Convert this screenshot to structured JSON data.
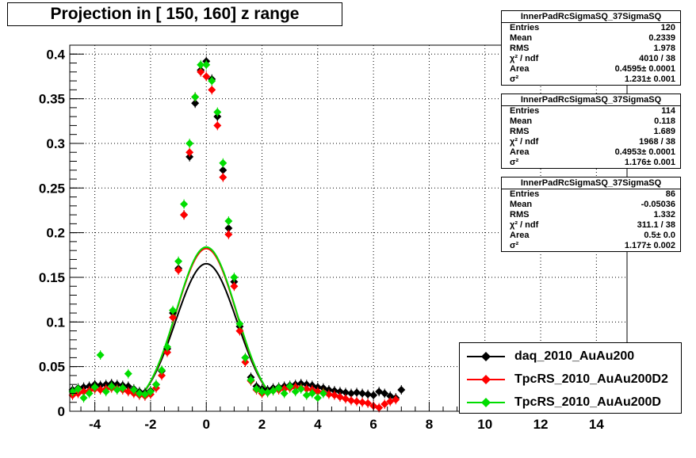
{
  "title": "Projection in [ 150, 160] z range",
  "stats": [
    {
      "name": "InnerPadRcSigmaSQ_37SigmaSQ",
      "rows": [
        {
          "label": "Entries",
          "value": "120"
        },
        {
          "label": "Mean",
          "value": "0.2339"
        },
        {
          "label": "RMS",
          "value": "1.978"
        },
        {
          "label": "χ² / ndf",
          "value": "4010 / 38"
        },
        {
          "label": "Area",
          "value": "0.4595± 0.0001"
        },
        {
          "label": "σ²",
          "value": "1.231± 0.001"
        }
      ]
    },
    {
      "name": "InnerPadRcSigmaSQ_37SigmaSQ",
      "rows": [
        {
          "label": "Entries",
          "value": "114"
        },
        {
          "label": "Mean",
          "value": "0.118"
        },
        {
          "label": "RMS",
          "value": "1.689"
        },
        {
          "label": "χ² / ndf",
          "value": "1968 / 38"
        },
        {
          "label": "Area",
          "value": "0.4953± 0.0001"
        },
        {
          "label": "σ²",
          "value": "1.176± 0.001"
        }
      ]
    },
    {
      "name": "InnerPadRcSigmaSQ_37SigmaSQ",
      "rows": [
        {
          "label": "Entries",
          "value": "86"
        },
        {
          "label": "Mean",
          "value": "-0.05036"
        },
        {
          "label": "RMS",
          "value": "1.332"
        },
        {
          "label": "χ² / ndf",
          "value": "311.1 / 38"
        },
        {
          "label": "Area",
          "value": "0.5± 0.0"
        },
        {
          "label": "σ²",
          "value": "1.177± 0.002"
        }
      ]
    }
  ],
  "legend": [
    {
      "label": "daq_2010_AuAu200",
      "color": "#000000"
    },
    {
      "label": "TpcRS_2010_AuAu200D2",
      "color": "#ff0000"
    },
    {
      "label": "TpcRS_2010_AuAu200D",
      "color": "#00dd00"
    }
  ],
  "chart_data": {
    "type": "scatter",
    "title": "Projection in [ 150, 160] z range",
    "xlim": [
      -4.9,
      15.1
    ],
    "ylim": [
      0,
      0.41
    ],
    "xticks": [
      -4,
      -2,
      0,
      2,
      4,
      6,
      8,
      10,
      12,
      14
    ],
    "xtick_labels": [
      "-4",
      "-2",
      "0",
      "2",
      "4",
      "6",
      "8",
      "10",
      "12",
      "14"
    ],
    "yticks": [
      0,
      0.05,
      0.1,
      0.15,
      0.2,
      0.25,
      0.3,
      0.35,
      0.4
    ],
    "ytick_labels": [
      "0",
      "0.05",
      "0.1",
      "0.15",
      "0.2",
      "0.25",
      "0.3",
      "0.35",
      "0.4"
    ],
    "grid": true,
    "legend_position": "bottom-right",
    "series": [
      {
        "name": "daq_2010_AuAu200",
        "color": "#000000",
        "points": [
          [
            -4.8,
            0.024
          ],
          [
            -4.6,
            0.026
          ],
          [
            -4.4,
            0.027
          ],
          [
            -4.2,
            0.028
          ],
          [
            -4.0,
            0.03
          ],
          [
            -3.8,
            0.029
          ],
          [
            -3.6,
            0.03
          ],
          [
            -3.4,
            0.031
          ],
          [
            -3.2,
            0.03
          ],
          [
            -3.0,
            0.029
          ],
          [
            -2.8,
            0.028
          ],
          [
            -2.6,
            0.025
          ],
          [
            -2.4,
            0.022
          ],
          [
            -2.2,
            0.021
          ],
          [
            -2.0,
            0.023
          ],
          [
            -1.8,
            0.03
          ],
          [
            -1.6,
            0.045
          ],
          [
            -1.4,
            0.07
          ],
          [
            -1.2,
            0.11
          ],
          [
            -1.0,
            0.16
          ],
          [
            -0.8,
            0.22
          ],
          [
            -0.6,
            0.285
          ],
          [
            -0.4,
            0.345
          ],
          [
            -0.2,
            0.382
          ],
          [
            0.0,
            0.392
          ],
          [
            0.2,
            0.372
          ],
          [
            0.4,
            0.33
          ],
          [
            0.6,
            0.27
          ],
          [
            0.8,
            0.205
          ],
          [
            1.0,
            0.145
          ],
          [
            1.2,
            0.095
          ],
          [
            1.4,
            0.06
          ],
          [
            1.6,
            0.038
          ],
          [
            1.8,
            0.028
          ],
          [
            2.0,
            0.025
          ],
          [
            2.2,
            0.024
          ],
          [
            2.4,
            0.026
          ],
          [
            2.6,
            0.027
          ],
          [
            2.8,
            0.028
          ],
          [
            3.0,
            0.029
          ],
          [
            3.2,
            0.03
          ],
          [
            3.4,
            0.031
          ],
          [
            3.6,
            0.03
          ],
          [
            3.8,
            0.029
          ],
          [
            4.0,
            0.027
          ],
          [
            4.2,
            0.026
          ],
          [
            4.4,
            0.024
          ],
          [
            4.6,
            0.023
          ],
          [
            4.8,
            0.022
          ],
          [
            5.0,
            0.021
          ],
          [
            5.2,
            0.02
          ],
          [
            5.4,
            0.021
          ],
          [
            5.6,
            0.02
          ],
          [
            5.8,
            0.019
          ],
          [
            6.0,
            0.018
          ],
          [
            6.2,
            0.022
          ],
          [
            6.4,
            0.02
          ],
          [
            6.6,
            0.017
          ],
          [
            6.8,
            0.015
          ],
          [
            7.0,
            0.024
          ]
        ]
      },
      {
        "name": "TpcRS_2010_AuAu200D2",
        "color": "#ff0000",
        "points": [
          [
            -4.8,
            0.018
          ],
          [
            -4.6,
            0.02
          ],
          [
            -4.4,
            0.022
          ],
          [
            -4.2,
            0.023
          ],
          [
            -4.0,
            0.025
          ],
          [
            -3.8,
            0.024
          ],
          [
            -3.6,
            0.025
          ],
          [
            -3.4,
            0.026
          ],
          [
            -3.2,
            0.025
          ],
          [
            -3.0,
            0.024
          ],
          [
            -2.8,
            0.022
          ],
          [
            -2.6,
            0.02
          ],
          [
            -2.4,
            0.018
          ],
          [
            -2.2,
            0.017
          ],
          [
            -2.0,
            0.019
          ],
          [
            -1.8,
            0.026
          ],
          [
            -1.6,
            0.04
          ],
          [
            -1.4,
            0.066
          ],
          [
            -1.2,
            0.105
          ],
          [
            -1.0,
            0.158
          ],
          [
            -0.8,
            0.22
          ],
          [
            -0.6,
            0.29
          ],
          [
            -0.4,
            0.352
          ],
          [
            -0.2,
            0.38
          ],
          [
            0.0,
            0.375
          ],
          [
            0.2,
            0.36
          ],
          [
            0.4,
            0.32
          ],
          [
            0.6,
            0.262
          ],
          [
            0.8,
            0.198
          ],
          [
            1.0,
            0.14
          ],
          [
            1.2,
            0.09
          ],
          [
            1.4,
            0.055
          ],
          [
            1.6,
            0.034
          ],
          [
            1.8,
            0.024
          ],
          [
            2.0,
            0.02
          ],
          [
            2.2,
            0.021
          ],
          [
            2.4,
            0.023
          ],
          [
            2.6,
            0.024
          ],
          [
            2.8,
            0.025
          ],
          [
            3.0,
            0.026
          ],
          [
            3.2,
            0.027
          ],
          [
            3.4,
            0.026
          ],
          [
            3.6,
            0.025
          ],
          [
            3.8,
            0.024
          ],
          [
            4.0,
            0.022
          ],
          [
            4.2,
            0.021
          ],
          [
            4.4,
            0.019
          ],
          [
            4.6,
            0.018
          ],
          [
            4.8,
            0.016
          ],
          [
            5.0,
            0.014
          ],
          [
            5.2,
            0.012
          ],
          [
            5.4,
            0.011
          ],
          [
            5.6,
            0.01
          ],
          [
            5.8,
            0.009
          ],
          [
            6.0,
            0.006
          ],
          [
            6.2,
            0.004
          ],
          [
            6.4,
            0.008
          ],
          [
            6.6,
            0.011
          ],
          [
            6.8,
            0.013
          ]
        ]
      },
      {
        "name": "TpcRS_2010_AuAu200D",
        "color": "#00dd00",
        "points": [
          [
            -4.8,
            0.022
          ],
          [
            -4.6,
            0.025
          ],
          [
            -4.4,
            0.015
          ],
          [
            -4.2,
            0.02
          ],
          [
            -4.0,
            0.027
          ],
          [
            -3.8,
            0.063
          ],
          [
            -3.6,
            0.022
          ],
          [
            -3.4,
            0.028
          ],
          [
            -3.2,
            0.024
          ],
          [
            -3.0,
            0.026
          ],
          [
            -2.8,
            0.042
          ],
          [
            -2.6,
            0.024
          ],
          [
            -2.4,
            0.02
          ],
          [
            -2.2,
            0.019
          ],
          [
            -2.0,
            0.022
          ],
          [
            -1.8,
            0.03
          ],
          [
            -1.6,
            0.046
          ],
          [
            -1.4,
            0.072
          ],
          [
            -1.2,
            0.113
          ],
          [
            -1.0,
            0.168
          ],
          [
            -0.8,
            0.232
          ],
          [
            -0.6,
            0.3
          ],
          [
            -0.4,
            0.352
          ],
          [
            -0.2,
            0.388
          ],
          [
            0.0,
            0.388
          ],
          [
            0.2,
            0.37
          ],
          [
            0.4,
            0.335
          ],
          [
            0.6,
            0.278
          ],
          [
            0.8,
            0.213
          ],
          [
            1.0,
            0.15
          ],
          [
            1.2,
            0.098
          ],
          [
            1.4,
            0.06
          ],
          [
            1.6,
            0.035
          ],
          [
            1.8,
            0.025
          ],
          [
            2.0,
            0.022
          ],
          [
            2.2,
            0.021
          ],
          [
            2.4,
            0.023
          ],
          [
            2.6,
            0.026
          ],
          [
            2.8,
            0.02
          ],
          [
            3.0,
            0.028
          ],
          [
            3.2,
            0.022
          ],
          [
            3.4,
            0.025
          ],
          [
            3.6,
            0.018
          ],
          [
            3.8,
            0.02
          ],
          [
            4.0,
            0.015
          ],
          [
            4.2,
            0.02
          ]
        ]
      }
    ],
    "fits": [
      {
        "name": "daq_2010_AuAu200",
        "color": "#000000",
        "area": 0.4595,
        "sigma2": 1.231,
        "mean": 0.0
      },
      {
        "name": "TpcRS_2010_AuAu200D2",
        "color": "#ff0000",
        "area": 0.4953,
        "sigma2": 1.176,
        "mean": 0.0
      },
      {
        "name": "TpcRS_2010_AuAu200D",
        "color": "#00dd00",
        "area": 0.5,
        "sigma2": 1.177,
        "mean": 0.0
      }
    ]
  }
}
